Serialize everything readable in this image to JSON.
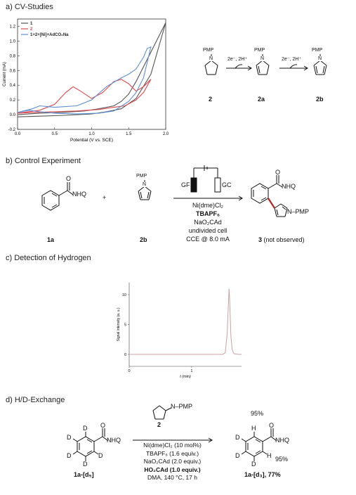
{
  "panel_a": {
    "title": "a) CV-Studies",
    "legend": [
      "1",
      "2",
      "1+2+[Ni]+AdCO₂Na"
    ],
    "compounds": {
      "c2": "2",
      "c2a": "2a",
      "c2b": "2b"
    },
    "pmp": "PMP",
    "reagent1": "2e⁻, 2H⁺",
    "reagent2": "2e⁻, 2H⁺",
    "n": "N"
  },
  "panel_b": {
    "title": "b) Control Experiment",
    "nhq": "NHQ",
    "plus": "+",
    "pmp": "PMP",
    "electrode_left": "GF",
    "electrode_right": "GC",
    "conditions": [
      "Ni(dme)Cl₂",
      "TBAPF₆",
      "NaO₂CAd",
      "undivided cell",
      "CCE @ 8.0 mA"
    ],
    "label_1a": "1a",
    "label_2b": "2b",
    "label_3": "3 (not observed)",
    "product_nhq": "NHQ",
    "product_npmp": "N–PMP",
    "o": "O"
  },
  "panel_c": {
    "title": "c) Detection of Hydrogen"
  },
  "panel_d": {
    "title": "d) H/D-Exchange",
    "reagent_label": "2",
    "reagent_npmp": "N–PMP",
    "conditions": [
      "Ni(dme)Cl₂ (10 mol%)",
      "TBAPF₆ (1.6 equiv.)",
      "NaO₂CAd (2.0 equiv.)",
      "HO₂CAd (1.0 equiv.)",
      "DMA, 140 °C, 17 h"
    ],
    "sm_label": "1a-[d₅]",
    "product_label": "1a-[d₃], 77%",
    "pct_top": "95%",
    "pct_side": "95%",
    "nhq": "NHQ",
    "o": "O",
    "d": "D",
    "h": "H"
  },
  "chart_data": [
    {
      "type": "line",
      "xlabel": "Potential (V vs. SCE)",
      "ylabel": "Current (mA)",
      "xlim": [
        0.0,
        2.0
      ],
      "ylim": [
        -0.2,
        1.3
      ],
      "xticks": [
        "0.0",
        "0.5",
        "1.0",
        "1.5",
        "2.0"
      ],
      "yticks": [
        "-0.2",
        "0.0",
        "0.2",
        "0.4",
        "0.6",
        "0.8",
        "1.0",
        "1.2"
      ],
      "legend_position": "top-left",
      "series": [
        {
          "name": "1",
          "color": "#555555",
          "x": [
            0.0,
            0.3,
            0.6,
            0.9,
            1.1,
            1.3,
            1.4,
            1.5,
            1.6,
            1.7,
            1.8,
            1.9,
            2.0,
            1.8,
            1.6,
            1.4,
            1.2,
            1.0,
            0.6,
            0.3,
            0.0
          ],
          "y": [
            0.0,
            0.02,
            0.03,
            0.05,
            0.08,
            0.12,
            0.18,
            0.28,
            0.45,
            0.65,
            0.85,
            1.05,
            1.25,
            0.55,
            0.22,
            0.08,
            0.04,
            0.01,
            -0.01,
            -0.02,
            -0.03
          ]
        },
        {
          "name": "2",
          "color": "#e0474c",
          "x": [
            0.0,
            0.3,
            0.5,
            0.65,
            0.75,
            0.85,
            1.0,
            1.15,
            1.3,
            1.4,
            1.5,
            1.6,
            1.7,
            1.8,
            1.7,
            1.6,
            1.45,
            1.3,
            1.1,
            0.8,
            0.5,
            0.2,
            0.0
          ],
          "y": [
            0.02,
            0.06,
            0.14,
            0.3,
            0.38,
            0.32,
            0.22,
            0.3,
            0.45,
            0.48,
            0.42,
            0.32,
            0.38,
            0.48,
            0.3,
            0.2,
            0.12,
            0.1,
            0.07,
            0.05,
            0.04,
            0.03,
            0.02
          ]
        },
        {
          "name": "1+2+[Ni]+AdCO₂Na",
          "color": "#5b8fd6",
          "x": [
            0.0,
            0.2,
            0.3,
            0.5,
            0.8,
            1.0,
            1.2,
            1.4,
            1.5,
            1.6,
            1.7,
            1.75,
            1.8,
            1.7,
            1.6,
            1.5,
            1.3,
            1.1,
            0.8,
            0.5,
            0.3,
            0.15,
            0.0
          ],
          "y": [
            0.03,
            0.08,
            0.12,
            0.1,
            0.12,
            0.2,
            0.38,
            0.5,
            0.55,
            0.62,
            0.78,
            0.9,
            0.92,
            0.5,
            0.3,
            0.18,
            0.05,
            0.02,
            0.01,
            0.02,
            0.04,
            0.06,
            0.03
          ]
        }
      ]
    },
    {
      "type": "line",
      "xlabel": "t (min)",
      "ylabel": "Signal intensity (a. u.)",
      "xlim": [
        0,
        1.8
      ],
      "ylim": [
        -2,
        12
      ],
      "xticks": [
        "0",
        "1"
      ],
      "yticks": [
        "0",
        "5",
        "10"
      ],
      "series": [
        {
          "name": "",
          "color": "#c9a2a0",
          "x": [
            0.0,
            0.5,
            1.0,
            1.5,
            1.54,
            1.57,
            1.59,
            1.6,
            1.61,
            1.63,
            1.65,
            1.68,
            1.75,
            1.8
          ],
          "y": [
            0.0,
            0.0,
            0.0,
            0.0,
            0.3,
            3.5,
            8.5,
            11.0,
            9.0,
            3.0,
            0.8,
            0.1,
            0.0,
            0.0
          ]
        }
      ]
    }
  ]
}
